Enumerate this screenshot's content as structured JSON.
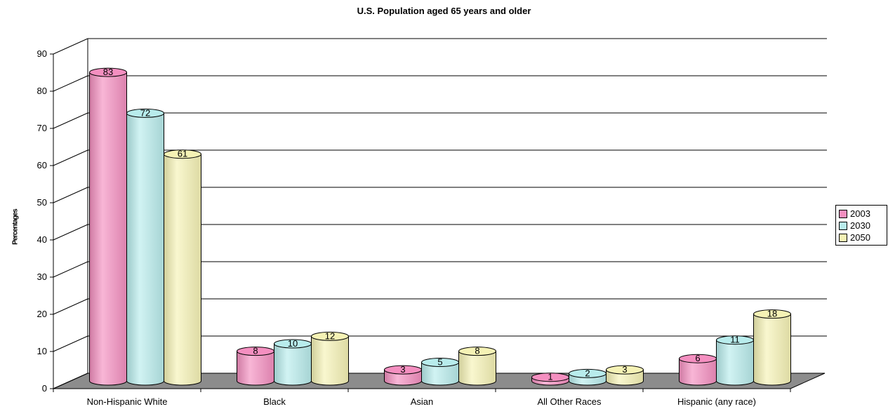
{
  "chart_data": {
    "type": "bar",
    "title": "U.S. Population aged 65 years and older",
    "ylabel": "Percentages",
    "xlabel": "",
    "ylim": [
      0,
      90
    ],
    "yticks": [
      0,
      10,
      20,
      30,
      40,
      50,
      60,
      70,
      80,
      90
    ],
    "categories": [
      "Non-Hispanic White",
      "Black",
      "Asian",
      "All Other Races",
      "Hispanic (any race)"
    ],
    "series": [
      {
        "name": "2003",
        "color": "#f48fc0",
        "values": [
          83,
          8,
          3,
          1,
          6
        ]
      },
      {
        "name": "2030",
        "color": "#b8ecec",
        "values": [
          72,
          10,
          5,
          2,
          11
        ]
      },
      {
        "name": "2050",
        "color": "#f5f2b5",
        "values": [
          61,
          12,
          8,
          3,
          18
        ]
      }
    ],
    "grid": true,
    "legend_position": "right",
    "style": "3d-cylinder"
  }
}
